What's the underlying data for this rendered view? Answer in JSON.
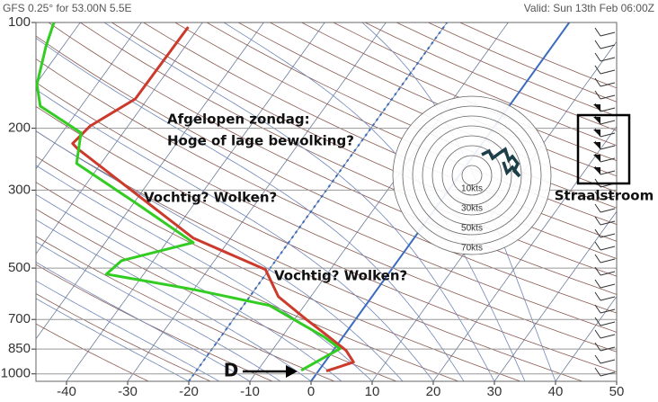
{
  "chart_data": {
    "type": "skewt",
    "title": "GFS 0.25° for 53.00N 5.5E",
    "subtitle": "Valid: Sun 13th Feb 06:00Z",
    "log_y": true,
    "xlim": [
      -45,
      50
    ],
    "ylim": [
      1050,
      100
    ],
    "xticks": [
      -40,
      -30,
      -20,
      -10,
      0,
      10,
      20,
      30,
      40,
      50
    ],
    "yticks": [
      100,
      200,
      300,
      500,
      700,
      850,
      1000
    ],
    "highlighted_isotherms": [
      {
        "value": 0,
        "style": "solid"
      },
      {
        "value": -20,
        "style": "dotted"
      }
    ],
    "series": [
      {
        "color": "#cc3a2c",
        "pressure": [
          982,
          926,
          858,
          763,
          698,
          603,
          505,
          411,
          280,
          228,
          221,
          197,
          165,
          103
        ],
        "values": [
          1.3,
          4.7,
          2.1,
          -3.7,
          -8.2,
          -15.3,
          -20.6,
          -36.1,
          -55.4,
          -65.7,
          -67,
          -66.2,
          -62,
          -61.8
        ]
      },
      {
        "color": "#33cc22",
        "pressure": [
          977,
          848,
          785,
          639,
          575,
          520,
          476,
          423,
          325,
          252,
          206,
          173,
          150,
          117,
          100
        ],
        "values": [
          -2.9,
          0.9,
          -3.1,
          -15.7,
          -30.1,
          -46.1,
          -45.2,
          -35.6,
          -49.9,
          -64,
          -66.9,
          -76.7,
          -79.8,
          -82.8,
          -84.3
        ]
      }
    ],
    "annotations": [
      "Afgelopen zondag:",
      "Hoge of lage bewolking?",
      "Vochtig? Wolken?",
      "Vochtig? Wolken?",
      "Straalstroom",
      "D"
    ],
    "hodograph": {
      "rings": [
        {
          "value": 10,
          "label": "10kts"
        },
        20,
        {
          "value": 30,
          "label": "30kts"
        },
        40,
        {
          "value": 50,
          "label": "50kts"
        },
        60,
        {
          "value": 70,
          "label": "70kts"
        },
        80
      ]
    }
  }
}
